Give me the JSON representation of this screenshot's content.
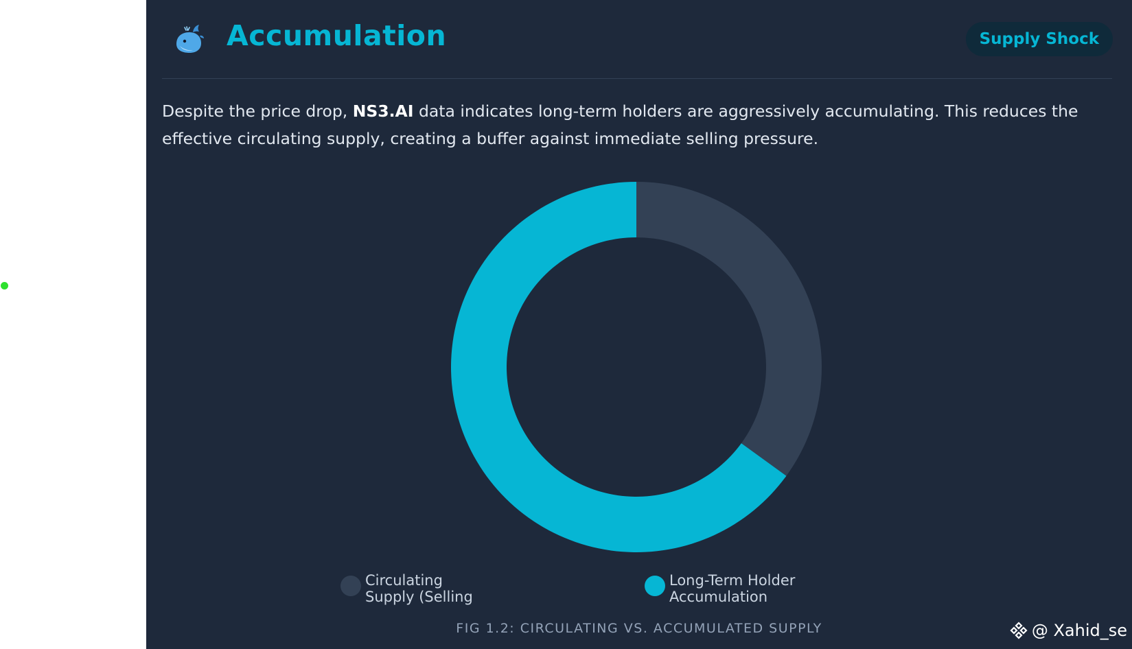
{
  "header": {
    "title": "Accumulation",
    "badge": "Supply Shock",
    "icon": "whale-icon"
  },
  "description": {
    "before": "Despite the price drop, ",
    "bold": "NS3.AI",
    "after": " data indicates long-term holders are aggressively accumulating. This reduces the effective circulating supply, creating a buffer against immediate selling pressure."
  },
  "chart_data": {
    "type": "pie",
    "donut": true,
    "categories": [
      "Circulating Supply (Selling",
      "Long-Term Holder Accumulation"
    ],
    "values": [
      35,
      65
    ],
    "colors": [
      "#334155",
      "#06b6d4"
    ],
    "legend_position": "bottom",
    "caption": "FIG 1.2: CIRCULATING VS. ACCUMULATED SUPPLY"
  },
  "watermark": {
    "icon": "binance-logo-icon",
    "text": "@ Xahid_se"
  },
  "colors": {
    "card_bg": "#1e293b",
    "accent": "#06b6d4",
    "muted_slice": "#334155"
  }
}
